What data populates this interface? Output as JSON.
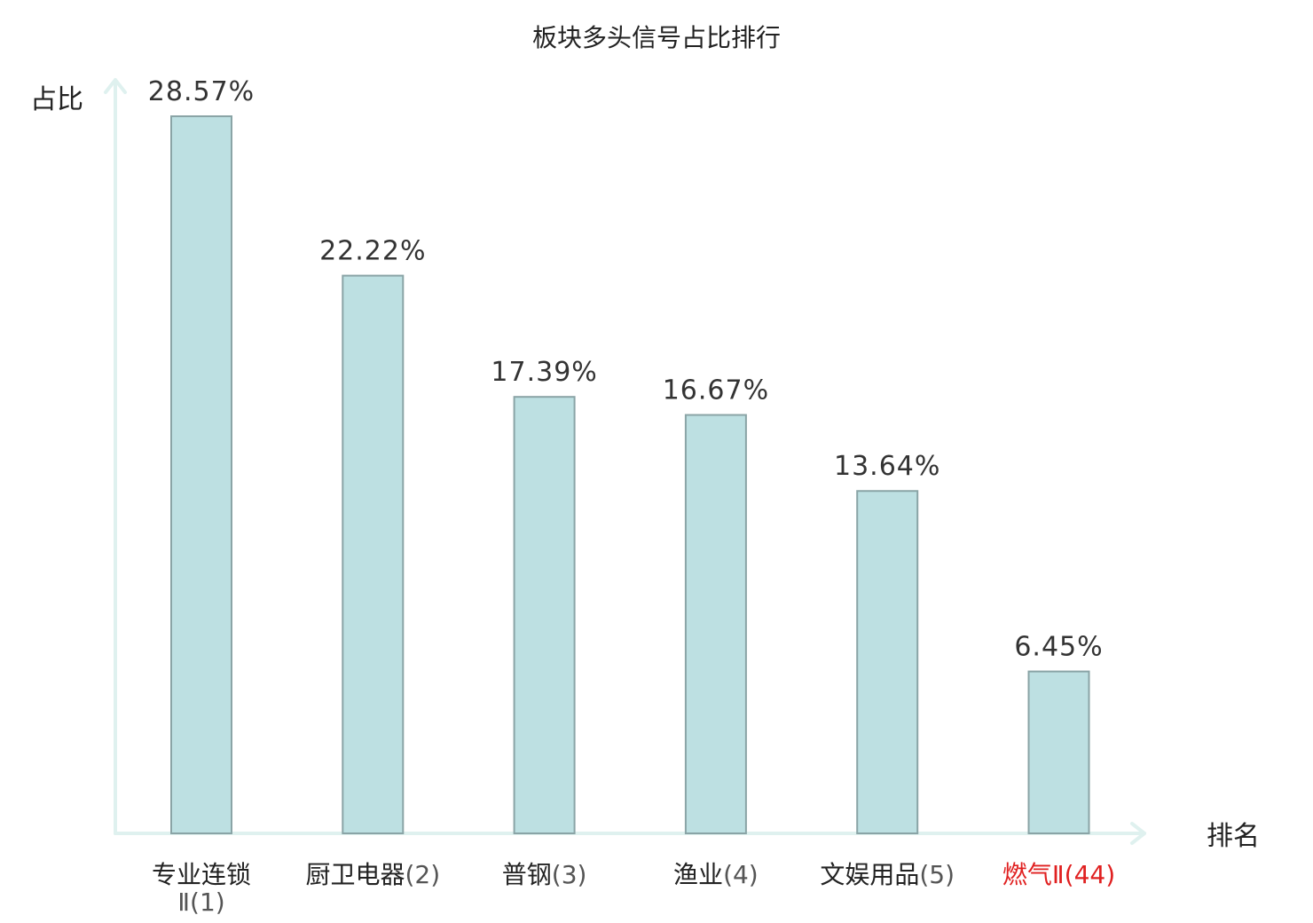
{
  "colors": {
    "bar_fill": "#bde0e2",
    "bar_stroke": "#8aa4a6",
    "axis": "#dff1ef",
    "text": "#222222",
    "highlight": "#e02020",
    "suffix_text": "#555555"
  },
  "chart_data": {
    "type": "bar",
    "title": "板块多头信号占比排行",
    "xlabel": "排名",
    "ylabel": "占比",
    "categories": [
      {
        "name": "专业连锁Ⅱ",
        "rank": "(1)",
        "highlight": false
      },
      {
        "name": "厨卫电器",
        "rank": "(2)",
        "highlight": false
      },
      {
        "name": "普钢",
        "rank": "(3)",
        "highlight": false
      },
      {
        "name": "渔业",
        "rank": "(4)",
        "highlight": false
      },
      {
        "name": "文娱用品",
        "rank": "(5)",
        "highlight": false
      },
      {
        "name": "燃气Ⅱ",
        "rank": "(44)",
        "highlight": true
      }
    ],
    "values": [
      28.57,
      22.22,
      17.39,
      16.67,
      13.64,
      6.45
    ],
    "value_labels": [
      "28.57%",
      "22.22%",
      "17.39%",
      "16.67%",
      "13.64%",
      "6.45%"
    ],
    "ylim": [
      0,
      30
    ],
    "grid": false,
    "legend": "none"
  }
}
